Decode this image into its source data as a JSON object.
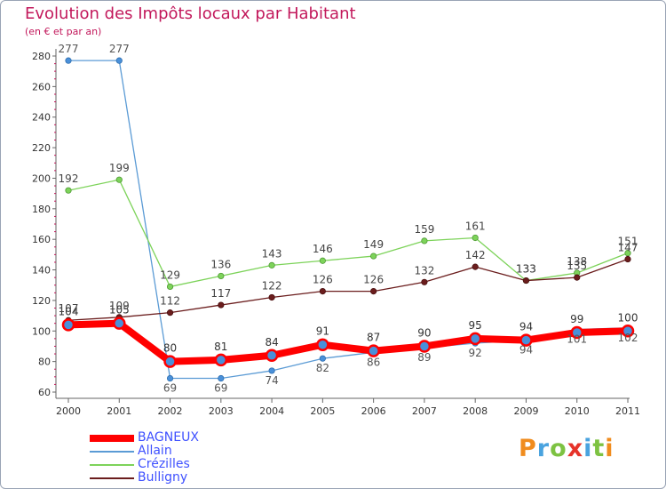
{
  "chart_data": {
    "type": "line",
    "title": "Evolution des Impôts locaux par Habitant",
    "subtitle": "(en € et par an)",
    "x": [
      "2000",
      "2001",
      "2002",
      "2003",
      "2004",
      "2005",
      "2006",
      "2007",
      "2008",
      "2009",
      "2010",
      "2011"
    ],
    "ylim": [
      60,
      280
    ],
    "yticks": [
      60,
      80,
      100,
      120,
      140,
      160,
      180,
      200,
      220,
      240,
      260,
      280
    ],
    "grid": false,
    "legend_position": "bottom-left",
    "series": [
      {
        "name": "BAGNEUX",
        "color": "#ff0000",
        "values": [
          104,
          105,
          80,
          81,
          84,
          91,
          87,
          90,
          95,
          94,
          99,
          100
        ]
      },
      {
        "name": "Allain",
        "color": "#5b9bd5",
        "values": [
          277,
          277,
          69,
          69,
          74,
          82,
          86,
          89,
          92,
          94,
          101,
          102
        ]
      },
      {
        "name": "Crézilles",
        "color": "#7dd35a",
        "values": [
          192,
          199,
          129,
          136,
          143,
          146,
          149,
          159,
          161,
          133,
          138,
          151
        ]
      },
      {
        "name": "Bulligny",
        "color": "#6b1d1d",
        "values": [
          107,
          109,
          112,
          117,
          122,
          126,
          126,
          132,
          142,
          133,
          135,
          147
        ]
      }
    ]
  },
  "logo": {
    "letters": [
      "P",
      "r",
      "o",
      "x",
      "i",
      "t",
      "i"
    ]
  }
}
